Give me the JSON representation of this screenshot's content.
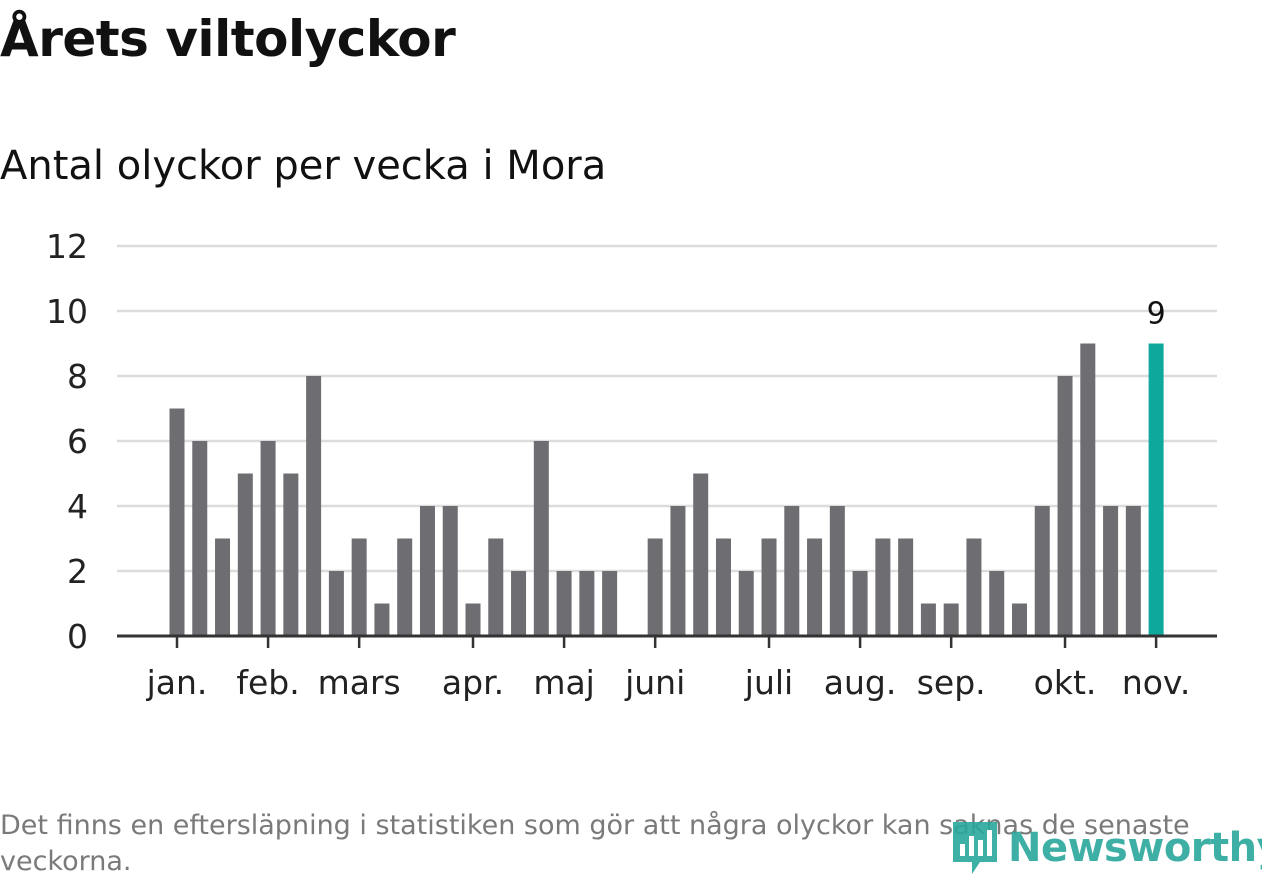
{
  "title": "Årets viltolyckor",
  "subtitle": "Antal olyckor per vecka i Mora",
  "footnote": "Det finns en eftersläpning i statistiken som gör att några olyckor kan saknas de senaste veckorna.",
  "logo_text": "Newsworthy",
  "colors": {
    "bar": "#6e6d72",
    "highlight": "#0ea89d",
    "grid": "#dcdcdc",
    "axis": "#333333"
  },
  "chart_data": {
    "type": "bar",
    "title": "Årets viltolyckor",
    "subtitle": "Antal olyckor per vecka i Mora",
    "ylim": [
      0,
      12
    ],
    "yticks": [
      0,
      2,
      4,
      6,
      8,
      10,
      12
    ],
    "grid": true,
    "x_tick_labels": [
      {
        "label": "jan.",
        "week_index": 0
      },
      {
        "label": "feb.",
        "week_index": 4
      },
      {
        "label": "mars",
        "week_index": 8
      },
      {
        "label": "apr.",
        "week_index": 13
      },
      {
        "label": "maj",
        "week_index": 17
      },
      {
        "label": "juni",
        "week_index": 21
      },
      {
        "label": "juli",
        "week_index": 26
      },
      {
        "label": "aug.",
        "week_index": 30
      },
      {
        "label": "sep.",
        "week_index": 34
      },
      {
        "label": "okt.",
        "week_index": 39
      },
      {
        "label": "nov.",
        "week_index": 43
      }
    ],
    "values": [
      7,
      6,
      3,
      5,
      6,
      5,
      8,
      2,
      3,
      1,
      3,
      4,
      4,
      1,
      3,
      2,
      6,
      2,
      2,
      2,
      0,
      3,
      4,
      5,
      3,
      2,
      3,
      4,
      3,
      4,
      2,
      3,
      3,
      1,
      1,
      3,
      2,
      1,
      4,
      8,
      9,
      4,
      4,
      9
    ],
    "highlight_index": 43,
    "highlight_label": "9"
  }
}
